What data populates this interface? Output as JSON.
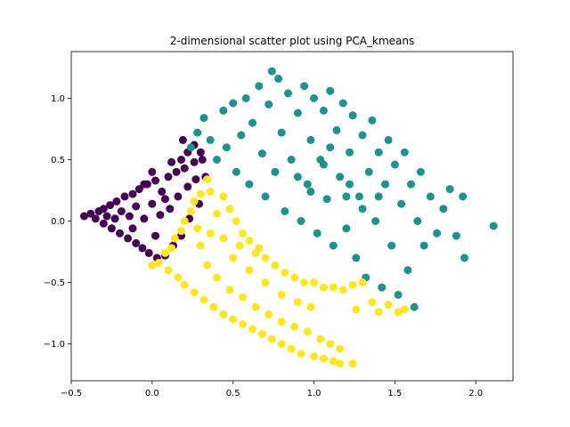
{
  "chart_data": {
    "type": "scatter",
    "title": "2-dimensional scatter plot using PCA_kmeans",
    "xlabel": "",
    "ylabel": "",
    "xlim": [
      -0.5,
      2.23
    ],
    "ylim": [
      -1.3,
      1.38
    ],
    "x_ticks": [
      -0.5,
      0.0,
      0.5,
      1.0,
      1.5,
      2.0
    ],
    "x_tick_labels": [
      "−0.5",
      "0.0",
      "0.5",
      "1.0",
      "1.5",
      "2.0"
    ],
    "y_ticks": [
      -1.0,
      -0.5,
      0.0,
      0.5,
      1.0
    ],
    "y_tick_labels": [
      "−1.0",
      "−0.5",
      "0.0",
      "0.5",
      "1.0"
    ],
    "grid": false,
    "legend": "none",
    "colors": {
      "cluster_0": "#440154",
      "cluster_1": "#21918c",
      "cluster_2": "#fde725"
    },
    "series": [
      {
        "cluster": 0,
        "color": "#440154",
        "points": [
          [
            -0.42,
            0.04
          ],
          [
            -0.38,
            0.06
          ],
          [
            -0.35,
            0.02
          ],
          [
            -0.33,
            0.08
          ],
          [
            -0.3,
            -0.02
          ],
          [
            -0.3,
            0.1
          ],
          [
            -0.28,
            0.04
          ],
          [
            -0.26,
            0.13
          ],
          [
            -0.25,
            -0.06
          ],
          [
            -0.23,
            0.02
          ],
          [
            -0.22,
            0.16
          ],
          [
            -0.2,
            -0.1
          ],
          [
            -0.19,
            0.08
          ],
          [
            -0.17,
            0.2
          ],
          [
            -0.15,
            -0.14
          ],
          [
            -0.14,
            0.04
          ],
          [
            -0.12,
            0.22
          ],
          [
            -0.1,
            -0.18
          ],
          [
            -0.1,
            0.12
          ],
          [
            -0.08,
            0.26
          ],
          [
            -0.06,
            -0.22
          ],
          [
            -0.05,
            0.02
          ],
          [
            -0.03,
            0.3
          ],
          [
            -0.02,
            -0.26
          ],
          [
            0.0,
            0.14
          ],
          [
            0.02,
            0.33
          ],
          [
            0.03,
            -0.3
          ],
          [
            0.05,
            0.05
          ],
          [
            0.06,
            0.24
          ],
          [
            0.08,
            -0.28
          ],
          [
            0.1,
            0.36
          ],
          [
            0.11,
            0.1
          ],
          [
            0.13,
            -0.2
          ],
          [
            0.15,
            0.4
          ],
          [
            0.16,
            0.2
          ],
          [
            0.18,
            -0.12
          ],
          [
            0.2,
            0.43
          ],
          [
            0.22,
            0.28
          ],
          [
            0.23,
            0.02
          ],
          [
            0.26,
            0.48
          ],
          [
            0.27,
            0.34
          ],
          [
            0.29,
            0.14
          ],
          [
            0.31,
            0.5
          ],
          [
            0.33,
            0.36
          ],
          [
            0.19,
            0.66
          ],
          [
            0.22,
            0.56
          ],
          [
            0.26,
            0.62
          ],
          [
            0.3,
            0.56
          ],
          [
            0.18,
            0.5
          ],
          [
            0.12,
            0.48
          ],
          [
            0.0,
            0.4
          ],
          [
            -0.05,
            0.3
          ],
          [
            0.08,
            0.18
          ],
          [
            0.02,
            -0.12
          ],
          [
            -0.12,
            -0.06
          ]
        ]
      },
      {
        "cluster": 1,
        "color": "#21918c",
        "points": [
          [
            0.24,
            0.6
          ],
          [
            0.28,
            0.72
          ],
          [
            0.32,
            0.84
          ],
          [
            0.36,
            0.66
          ],
          [
            0.4,
            0.5
          ],
          [
            0.44,
            0.9
          ],
          [
            0.46,
            0.6
          ],
          [
            0.5,
            0.96
          ],
          [
            0.52,
            0.4
          ],
          [
            0.55,
            0.7
          ],
          [
            0.58,
            1.0
          ],
          [
            0.6,
            0.3
          ],
          [
            0.62,
            0.8
          ],
          [
            0.66,
            1.1
          ],
          [
            0.68,
            0.55
          ],
          [
            0.7,
            0.2
          ],
          [
            0.72,
            0.95
          ],
          [
            0.74,
            1.22
          ],
          [
            0.76,
            0.4
          ],
          [
            0.78,
            1.16
          ],
          [
            0.8,
            0.72
          ],
          [
            0.82,
            0.08
          ],
          [
            0.84,
            1.04
          ],
          [
            0.86,
            0.5
          ],
          [
            0.9,
            0.88
          ],
          [
            0.92,
            0.0
          ],
          [
            0.94,
            1.1
          ],
          [
            0.96,
            0.3
          ],
          [
            0.98,
            0.66
          ],
          [
            1.0,
            1.0
          ],
          [
            1.02,
            -0.1
          ],
          [
            1.04,
            0.5
          ],
          [
            1.06,
            0.9
          ],
          [
            1.08,
            0.18
          ],
          [
            1.1,
            1.06
          ],
          [
            1.12,
            -0.2
          ],
          [
            1.14,
            0.74
          ],
          [
            1.16,
            0.36
          ],
          [
            1.18,
            0.96
          ],
          [
            1.2,
            -0.06
          ],
          [
            1.22,
            0.56
          ],
          [
            1.24,
            0.86
          ],
          [
            1.26,
            -0.3
          ],
          [
            1.28,
            0.2
          ],
          [
            1.3,
            0.7
          ],
          [
            1.32,
            -0.46
          ],
          [
            1.34,
            0.4
          ],
          [
            1.36,
            0.82
          ],
          [
            1.38,
            0.0
          ],
          [
            1.4,
            0.56
          ],
          [
            1.42,
            -0.54
          ],
          [
            1.44,
            0.3
          ],
          [
            1.46,
            0.66
          ],
          [
            1.48,
            -0.2
          ],
          [
            1.5,
            0.46
          ],
          [
            1.52,
            -0.6
          ],
          [
            1.54,
            0.14
          ],
          [
            1.56,
            0.56
          ],
          [
            1.58,
            -0.4
          ],
          [
            1.6,
            0.3
          ],
          [
            1.62,
            -0.7
          ],
          [
            1.64,
            0.0
          ],
          [
            1.66,
            0.4
          ],
          [
            1.68,
            -0.2
          ],
          [
            1.72,
            0.2
          ],
          [
            1.76,
            -0.1
          ],
          [
            1.8,
            0.1
          ],
          [
            1.84,
            0.26
          ],
          [
            1.88,
            -0.12
          ],
          [
            1.92,
            0.2
          ],
          [
            1.93,
            -0.3
          ],
          [
            2.11,
            -0.04
          ],
          [
            1.22,
            0.3
          ],
          [
            1.1,
            0.6
          ],
          [
            0.98,
            0.24
          ],
          [
            0.9,
            0.36
          ],
          [
            1.3,
            0.1
          ],
          [
            1.4,
            0.2
          ],
          [
            1.2,
            0.2
          ],
          [
            1.06,
            0.46
          ]
        ]
      },
      {
        "cluster": 2,
        "color": "#fde725",
        "points": [
          [
            0.34,
            0.34
          ],
          [
            0.36,
            0.24
          ],
          [
            0.3,
            0.22
          ],
          [
            0.26,
            0.16
          ],
          [
            0.24,
            0.08
          ],
          [
            0.2,
            0.0
          ],
          [
            0.18,
            -0.08
          ],
          [
            0.14,
            -0.14
          ],
          [
            0.12,
            -0.22
          ],
          [
            0.08,
            -0.26
          ],
          [
            0.04,
            -0.34
          ],
          [
            0.0,
            -0.36
          ],
          [
            0.1,
            -0.4
          ],
          [
            0.16,
            -0.46
          ],
          [
            0.2,
            -0.52
          ],
          [
            0.26,
            -0.58
          ],
          [
            0.32,
            -0.64
          ],
          [
            0.38,
            -0.7
          ],
          [
            0.44,
            -0.76
          ],
          [
            0.5,
            -0.8
          ],
          [
            0.56,
            -0.84
          ],
          [
            0.62,
            -0.88
          ],
          [
            0.68,
            -0.92
          ],
          [
            0.74,
            -0.96
          ],
          [
            0.8,
            -1.0
          ],
          [
            0.86,
            -1.04
          ],
          [
            0.92,
            -1.08
          ],
          [
            1.0,
            -1.1
          ],
          [
            1.06,
            -1.12
          ],
          [
            1.12,
            -1.14
          ],
          [
            1.16,
            -1.16
          ],
          [
            1.24,
            -1.16
          ],
          [
            0.44,
            0.2
          ],
          [
            0.48,
            0.1
          ],
          [
            0.52,
            0.0
          ],
          [
            0.56,
            -0.1
          ],
          [
            0.6,
            -0.16
          ],
          [
            0.66,
            -0.22
          ],
          [
            0.7,
            -0.3
          ],
          [
            0.76,
            -0.36
          ],
          [
            0.82,
            -0.42
          ],
          [
            0.88,
            -0.46
          ],
          [
            0.94,
            -0.5
          ],
          [
            1.0,
            -0.5
          ],
          [
            1.06,
            -0.54
          ],
          [
            1.12,
            -0.54
          ],
          [
            1.18,
            -0.56
          ],
          [
            1.24,
            -0.52
          ],
          [
            1.3,
            -0.5
          ],
          [
            1.26,
            -0.72
          ],
          [
            1.36,
            -0.66
          ],
          [
            1.4,
            -0.74
          ],
          [
            1.46,
            -0.68
          ],
          [
            1.52,
            -0.74
          ],
          [
            1.56,
            -0.72
          ],
          [
            0.4,
            0.06
          ],
          [
            0.36,
            -0.1
          ],
          [
            0.3,
            -0.2
          ],
          [
            0.34,
            -0.36
          ],
          [
            0.4,
            -0.46
          ],
          [
            0.48,
            -0.56
          ],
          [
            0.56,
            -0.62
          ],
          [
            0.64,
            -0.7
          ],
          [
            0.72,
            -0.76
          ],
          [
            0.8,
            -0.82
          ],
          [
            0.88,
            -0.86
          ],
          [
            0.96,
            -0.9
          ],
          [
            1.04,
            -0.96
          ],
          [
            1.1,
            -1.0
          ],
          [
            1.16,
            -1.04
          ],
          [
            0.5,
            -0.3
          ],
          [
            0.6,
            -0.4
          ],
          [
            0.7,
            -0.5
          ],
          [
            0.8,
            -0.6
          ],
          [
            0.9,
            -0.66
          ],
          [
            0.98,
            -0.7
          ],
          [
            0.44,
            -0.14
          ],
          [
            0.54,
            -0.2
          ],
          [
            0.64,
            -0.26
          ],
          [
            0.28,
            -0.06
          ]
        ]
      }
    ]
  }
}
